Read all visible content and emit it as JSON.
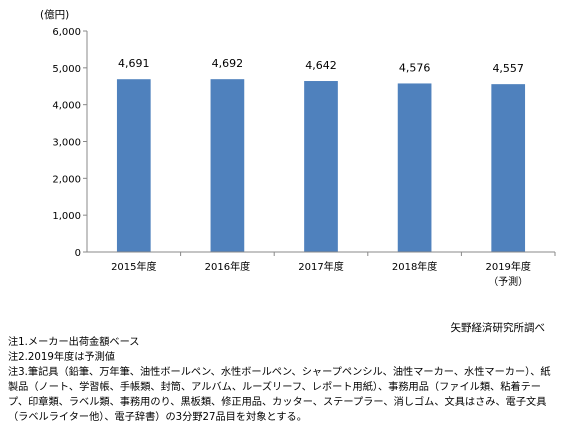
{
  "chart_data": {
    "type": "bar",
    "unit_label": "(億円)",
    "categories": [
      "2015年度",
      "2016年度",
      "2017年度",
      "2018年度",
      "2019年度"
    ],
    "category_sublabels": [
      "",
      "",
      "",
      "",
      "（予測）"
    ],
    "values": [
      4691,
      4692,
      4642,
      4576,
      4557
    ],
    "value_labels": [
      "4,691",
      "4,692",
      "4,642",
      "4,576",
      "4,557"
    ],
    "ylim": [
      0,
      6000
    ],
    "yticks": [
      "0",
      "1,000",
      "2,000",
      "3,000",
      "4,000",
      "5,000",
      "6,000"
    ],
    "bar_color": "#4f81bd",
    "grid": false
  },
  "source": "矢野経済研究所調べ",
  "notes": [
    "注1.メーカー出荷金額ベース",
    "注2.2019年度は予測値",
    "注3.筆記具（鉛筆、万年筆、油性ボールペン、水性ボールペン、シャープペンシル、油性マーカー、水性マーカー）、紙製品（ノート、学習帳、手帳類、封筒、アルバム、ルーズリーフ、レポート用紙）、事務用品（ファイル類、粘着テープ、印章類、ラベル類、事務用のり、黒板類、修正用品、カッター、ステープラー、消しゴム、文具はさみ、電子文具（ラベルライター他）、電子辞書）の3分野27品目を対象とする。"
  ]
}
